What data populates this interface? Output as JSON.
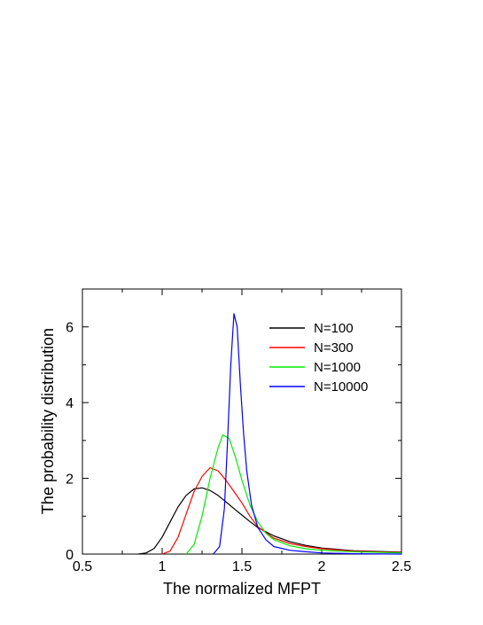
{
  "chart_data": {
    "type": "line",
    "title": "",
    "xlabel": "The normalized MFPT",
    "ylabel": "The probability distribution",
    "xlim": [
      0.5,
      2.5
    ],
    "ylim": [
      0,
      7
    ],
    "xticks": [
      0.5,
      1,
      1.5,
      2,
      2.5
    ],
    "xtick_labels": [
      "0.5",
      "1",
      "1.5",
      "2",
      "2.5"
    ],
    "yticks": [
      0,
      2,
      4,
      6
    ],
    "ytick_labels": [
      "0",
      "2",
      "4",
      "6"
    ],
    "grid": false,
    "legend_position": "top-right",
    "series": [
      {
        "name": "N=100",
        "color": "#000000",
        "points": [
          [
            0.85,
            0
          ],
          [
            0.9,
            0.03
          ],
          [
            0.95,
            0.15
          ],
          [
            1.0,
            0.45
          ],
          [
            1.05,
            0.85
          ],
          [
            1.1,
            1.25
          ],
          [
            1.15,
            1.55
          ],
          [
            1.2,
            1.72
          ],
          [
            1.25,
            1.75
          ],
          [
            1.3,
            1.68
          ],
          [
            1.35,
            1.55
          ],
          [
            1.4,
            1.38
          ],
          [
            1.45,
            1.2
          ],
          [
            1.5,
            1.03
          ],
          [
            1.55,
            0.86
          ],
          [
            1.6,
            0.7
          ],
          [
            1.7,
            0.48
          ],
          [
            1.8,
            0.33
          ],
          [
            1.9,
            0.23
          ],
          [
            2.0,
            0.16
          ],
          [
            2.2,
            0.09
          ],
          [
            2.5,
            0.05
          ]
        ]
      },
      {
        "name": "N=300",
        "color": "#ff0000",
        "points": [
          [
            1.0,
            0
          ],
          [
            1.05,
            0.08
          ],
          [
            1.1,
            0.45
          ],
          [
            1.15,
            1.05
          ],
          [
            1.2,
            1.65
          ],
          [
            1.25,
            2.05
          ],
          [
            1.3,
            2.28
          ],
          [
            1.35,
            2.2
          ],
          [
            1.4,
            1.95
          ],
          [
            1.45,
            1.65
          ],
          [
            1.5,
            1.35
          ],
          [
            1.55,
            1.0
          ],
          [
            1.6,
            0.72
          ],
          [
            1.7,
            0.42
          ],
          [
            1.8,
            0.28
          ],
          [
            1.9,
            0.2
          ],
          [
            2.0,
            0.14
          ],
          [
            2.2,
            0.08
          ],
          [
            2.5,
            0.04
          ]
        ]
      },
      {
        "name": "N=1000",
        "color": "#00ee00",
        "points": [
          [
            1.15,
            0
          ],
          [
            1.2,
            0.25
          ],
          [
            1.25,
            1.0
          ],
          [
            1.3,
            2.0
          ],
          [
            1.35,
            2.8
          ],
          [
            1.38,
            3.15
          ],
          [
            1.42,
            3.05
          ],
          [
            1.46,
            2.55
          ],
          [
            1.5,
            1.95
          ],
          [
            1.55,
            1.3
          ],
          [
            1.6,
            0.85
          ],
          [
            1.65,
            0.55
          ],
          [
            1.7,
            0.38
          ],
          [
            1.8,
            0.22
          ],
          [
            1.9,
            0.14
          ],
          [
            2.0,
            0.1
          ],
          [
            2.2,
            0.06
          ],
          [
            2.5,
            0.03
          ]
        ]
      },
      {
        "name": "N=10000",
        "color": "#0000ff",
        "points": [
          [
            1.32,
            0
          ],
          [
            1.36,
            0.2
          ],
          [
            1.39,
            1.2
          ],
          [
            1.41,
            3.0
          ],
          [
            1.43,
            5.0
          ],
          [
            1.45,
            6.35
          ],
          [
            1.47,
            6.0
          ],
          [
            1.49,
            4.5
          ],
          [
            1.51,
            3.2
          ],
          [
            1.53,
            2.2
          ],
          [
            1.56,
            1.3
          ],
          [
            1.6,
            0.7
          ],
          [
            1.65,
            0.38
          ],
          [
            1.7,
            0.2
          ],
          [
            1.8,
            0.1
          ],
          [
            1.9,
            0.06
          ],
          [
            2.0,
            0.03
          ],
          [
            2.2,
            0.01
          ],
          [
            2.5,
            0.0
          ]
        ]
      }
    ]
  }
}
